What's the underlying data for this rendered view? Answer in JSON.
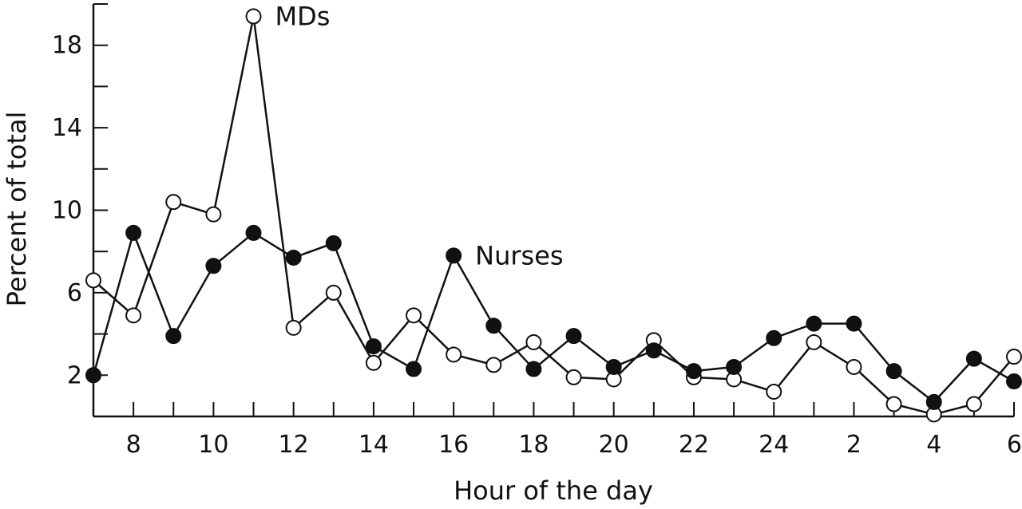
{
  "chart_data": {
    "type": "line",
    "xlabel": "Hour of the day",
    "ylabel": "Percent of total",
    "x_categories": [
      "7",
      "8",
      "9",
      "10",
      "11",
      "12",
      "13",
      "14",
      "15",
      "16",
      "17",
      "18",
      "19",
      "20",
      "21",
      "22",
      "23",
      "24",
      "1",
      "2",
      "3",
      "4",
      "5",
      "6"
    ],
    "x_tick_labels": [
      "8",
      "10",
      "12",
      "14",
      "16",
      "18",
      "20",
      "22",
      "24",
      "2",
      "4",
      "6"
    ],
    "y_ticks": [
      2,
      6,
      10,
      14,
      18
    ],
    "ylim": [
      0,
      20
    ],
    "grid": false,
    "series": [
      {
        "name": "MDs",
        "marker": "open-circle",
        "values": [
          6.6,
          4.9,
          10.4,
          9.8,
          19.4,
          4.3,
          6.0,
          2.6,
          4.9,
          3.0,
          2.5,
          3.6,
          1.9,
          1.8,
          3.7,
          1.9,
          1.8,
          1.2,
          3.6,
          2.4,
          0.6,
          0.1,
          0.6,
          2.9
        ]
      },
      {
        "name": "Nurses",
        "marker": "filled-circle",
        "values": [
          2.0,
          8.9,
          3.9,
          7.3,
          8.9,
          7.7,
          8.4,
          3.4,
          2.3,
          7.8,
          4.4,
          2.3,
          3.9,
          2.4,
          3.2,
          2.2,
          2.4,
          3.8,
          4.5,
          4.5,
          2.2,
          0.7,
          2.8,
          1.7
        ]
      }
    ]
  }
}
